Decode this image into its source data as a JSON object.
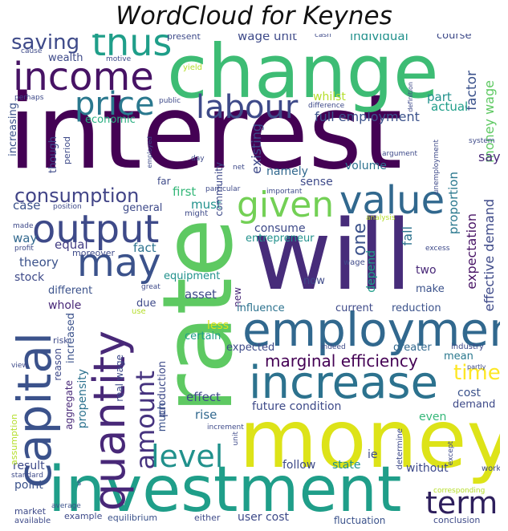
{
  "title": "WordCloud for Keynes",
  "words": [
    {
      "text": "interest",
      "color": "#440154",
      "vertical": false
    },
    {
      "text": "will",
      "color": "#472c7a",
      "vertical": false
    },
    {
      "text": "rate",
      "color": "#5ec962",
      "vertical": true
    },
    {
      "text": "money",
      "color": "#dde318",
      "vertical": false
    },
    {
      "text": "change",
      "color": "#3dbc74",
      "vertical": false
    },
    {
      "text": "investment",
      "color": "#1f9e89",
      "vertical": false
    },
    {
      "text": "employment",
      "color": "#31688e",
      "vertical": false
    },
    {
      "text": "capital",
      "color": "#3b528b",
      "vertical": true
    },
    {
      "text": "increase",
      "color": "#2c728e",
      "vertical": false
    },
    {
      "text": "quantity",
      "color": "#482878",
      "vertical": true
    },
    {
      "text": "income",
      "color": "#471365",
      "vertical": false
    },
    {
      "text": "output",
      "color": "#3e4a89",
      "vertical": false
    },
    {
      "text": "may",
      "color": "#3b528b",
      "vertical": false
    },
    {
      "text": "value",
      "color": "#31688e",
      "vertical": false
    },
    {
      "text": "given",
      "color": "#73d055",
      "vertical": false
    },
    {
      "text": "thus",
      "color": "#1f9e89",
      "vertical": false
    },
    {
      "text": "labour",
      "color": "#3e4a89",
      "vertical": false
    },
    {
      "text": "price",
      "color": "#2a788e",
      "vertical": false
    },
    {
      "text": "consumption",
      "color": "#414487",
      "vertical": false
    },
    {
      "text": "amount",
      "color": "#46337f",
      "vertical": true
    },
    {
      "text": "level",
      "color": "#21918c",
      "vertical": false
    },
    {
      "text": "term",
      "color": "#2d1e5c",
      "vertical": false
    },
    {
      "text": "time",
      "color": "#fde725",
      "vertical": false
    },
    {
      "text": "saving",
      "color": "#3e4a89",
      "vertical": false
    },
    {
      "text": "marginal efficiency",
      "color": "#440154",
      "vertical": false
    },
    {
      "text": "wage unit",
      "color": "#3e4a89",
      "vertical": false
    },
    {
      "text": "individual",
      "color": "#21918c",
      "vertical": false
    },
    {
      "text": "full employment",
      "color": "#3b528b",
      "vertical": false
    },
    {
      "text": "money wage",
      "color": "#5ec962",
      "vertical": true
    },
    {
      "text": "factor",
      "color": "#3b528b",
      "vertical": true
    },
    {
      "text": "part",
      "color": "#21918c",
      "vertical": false
    },
    {
      "text": "actual",
      "color": "#1f9e89",
      "vertical": false
    },
    {
      "text": "say",
      "color": "#482878",
      "vertical": false
    },
    {
      "text": "economic",
      "color": "#28ae80",
      "vertical": false
    },
    {
      "text": "existing",
      "color": "#3e4a89",
      "vertical": true
    },
    {
      "text": "namely",
      "color": "#31688e",
      "vertical": false
    },
    {
      "text": "volume",
      "color": "#2c728e",
      "vertical": false
    },
    {
      "text": "sense",
      "color": "#3e4a89",
      "vertical": false
    },
    {
      "text": "proportion",
      "color": "#2a788e",
      "vertical": true
    },
    {
      "text": "first",
      "color": "#35b779",
      "vertical": false
    },
    {
      "text": "must",
      "color": "#21918c",
      "vertical": false
    },
    {
      "text": "case",
      "color": "#3b528b",
      "vertical": false
    },
    {
      "text": "general",
      "color": "#3e4a89",
      "vertical": false
    },
    {
      "text": "way",
      "color": "#31688e",
      "vertical": false
    },
    {
      "text": "equal",
      "color": "#433d84",
      "vertical": false
    },
    {
      "text": "fact",
      "color": "#2c728e",
      "vertical": false
    },
    {
      "text": "theory",
      "color": "#3b528b",
      "vertical": false
    },
    {
      "text": "stock",
      "color": "#3e4a89",
      "vertical": false
    },
    {
      "text": "consume",
      "color": "#3e4a89",
      "vertical": false
    },
    {
      "text": "entrepreneur",
      "color": "#21918c",
      "vertical": false
    },
    {
      "text": "one",
      "color": "#3b528b",
      "vertical": true
    },
    {
      "text": "fall",
      "color": "#2c728e",
      "vertical": true
    },
    {
      "text": "depend",
      "color": "#1f9e89",
      "vertical": true
    },
    {
      "text": "two",
      "color": "#482878",
      "vertical": false
    },
    {
      "text": "expectation",
      "color": "#471365",
      "vertical": true
    },
    {
      "text": "effective demand",
      "color": "#3e4a89",
      "vertical": true
    },
    {
      "text": "equipment",
      "color": "#21918c",
      "vertical": false
    },
    {
      "text": "now",
      "color": "#3e4a89",
      "vertical": false
    },
    {
      "text": "make",
      "color": "#3b528b",
      "vertical": false
    },
    {
      "text": "different",
      "color": "#3b528b",
      "vertical": false
    },
    {
      "text": "whole",
      "color": "#482878",
      "vertical": false
    },
    {
      "text": "due",
      "color": "#3e4a89",
      "vertical": false
    },
    {
      "text": "asset",
      "color": "#3e4a89",
      "vertical": false
    },
    {
      "text": "new",
      "color": "#482878",
      "vertical": true
    },
    {
      "text": "influence",
      "color": "#2c728e",
      "vertical": false
    },
    {
      "text": "current",
      "color": "#3e4a89",
      "vertical": false
    },
    {
      "text": "reduction",
      "color": "#3b528b",
      "vertical": false
    },
    {
      "text": "increased",
      "color": "#3b528b",
      "vertical": true
    },
    {
      "text": "certain",
      "color": "#1f9e89",
      "vertical": false
    },
    {
      "text": "less",
      "color": "#dde318",
      "vertical": false
    },
    {
      "text": "expected",
      "color": "#3e4a89",
      "vertical": false
    },
    {
      "text": "greater",
      "color": "#31688e",
      "vertical": false
    },
    {
      "text": "mean",
      "color": "#2a788e",
      "vertical": false
    },
    {
      "text": "cost",
      "color": "#3b528b",
      "vertical": false
    },
    {
      "text": "demand",
      "color": "#3e4a89",
      "vertical": false
    },
    {
      "text": "even",
      "color": "#35b779",
      "vertical": false
    },
    {
      "text": "effect",
      "color": "#3e4a89",
      "vertical": false
    },
    {
      "text": "future condition",
      "color": "#3e4a89",
      "vertical": false
    },
    {
      "text": "rise",
      "color": "#31688e",
      "vertical": false
    },
    {
      "text": "production",
      "color": "#3e4a89",
      "vertical": true
    },
    {
      "text": "much",
      "color": "#3b528b",
      "vertical": true
    },
    {
      "text": "real wage",
      "color": "#3e4a89",
      "vertical": true
    },
    {
      "text": "propensity",
      "color": "#2c728e",
      "vertical": true
    },
    {
      "text": "aggregate",
      "color": "#482878",
      "vertical": true
    },
    {
      "text": "result",
      "color": "#3e4a89",
      "vertical": false
    },
    {
      "text": "point",
      "color": "#3b528b",
      "vertical": false
    },
    {
      "text": "follow",
      "color": "#3e4a89",
      "vertical": false
    },
    {
      "text": "state",
      "color": "#21918c",
      "vertical": false
    },
    {
      "text": "without",
      "color": "#3e4a89",
      "vertical": false
    },
    {
      "text": "ie",
      "color": "#3e4a89",
      "vertical": false
    },
    {
      "text": "user cost",
      "color": "#3e4a89",
      "vertical": false
    },
    {
      "text": "fluctuation",
      "color": "#3b528b",
      "vertical": false
    },
    {
      "text": "conclusion",
      "color": "#3e4a89",
      "vertical": false
    },
    {
      "text": "either",
      "color": "#3e4a89",
      "vertical": false
    },
    {
      "text": "equilibrium",
      "color": "#3b528b",
      "vertical": false
    },
    {
      "text": "example",
      "color": "#3e4a89",
      "vertical": false
    },
    {
      "text": "market",
      "color": "#3e4a89",
      "vertical": false
    },
    {
      "text": "available",
      "color": "#3e4a89",
      "vertical": false
    },
    {
      "text": "average",
      "color": "#3b528b",
      "vertical": false
    },
    {
      "text": "standard",
      "color": "#3e4a89",
      "vertical": false
    },
    {
      "text": "assumption",
      "color": "#b5de2b",
      "vertical": true
    },
    {
      "text": "view",
      "color": "#3e4a89",
      "vertical": false
    },
    {
      "text": "risk",
      "color": "#3e4a89",
      "vertical": false
    },
    {
      "text": "reason",
      "color": "#3e4a89",
      "vertical": true
    },
    {
      "text": "wealth",
      "color": "#3e4a89",
      "vertical": false
    },
    {
      "text": "motive",
      "color": "#3e4a89",
      "vertical": false
    },
    {
      "text": "cause",
      "color": "#3e4a89",
      "vertical": false
    },
    {
      "text": "perhaps",
      "color": "#3e4a89",
      "vertical": false
    },
    {
      "text": "increasing",
      "color": "#3b528b",
      "vertical": true
    },
    {
      "text": "though",
      "color": "#3e4a89",
      "vertical": true
    },
    {
      "text": "period",
      "color": "#3e4a89",
      "vertical": true
    },
    {
      "text": "present",
      "color": "#3e4a89",
      "vertical": false
    },
    {
      "text": "cash",
      "color": "#3e4a89",
      "vertical": false
    },
    {
      "text": "course",
      "color": "#3e4a89",
      "vertical": false
    },
    {
      "text": "whilst",
      "color": "#b5de2b",
      "vertical": false
    },
    {
      "text": "difference",
      "color": "#3e4a89",
      "vertical": false
    },
    {
      "text": "definition",
      "color": "#3e4a89",
      "vertical": true
    },
    {
      "text": "yield",
      "color": "#b5de2b",
      "vertical": false
    },
    {
      "text": "public",
      "color": "#3e4a89",
      "vertical": false
    },
    {
      "text": "employed",
      "color": "#3e4a89",
      "vertical": true
    },
    {
      "text": "day",
      "color": "#3e4a89",
      "vertical": false
    },
    {
      "text": "far",
      "color": "#3e4a89",
      "vertical": false
    },
    {
      "text": "community",
      "color": "#3e4a89",
      "vertical": true
    },
    {
      "text": "net",
      "color": "#3e4a89",
      "vertical": false
    },
    {
      "text": "argument",
      "color": "#3e4a89",
      "vertical": false
    },
    {
      "text": "unemployment",
      "color": "#3e4a89",
      "vertical": true
    },
    {
      "text": "system",
      "color": "#3e4a89",
      "vertical": false
    },
    {
      "text": "particular",
      "color": "#3e4a89",
      "vertical": false
    },
    {
      "text": "important",
      "color": "#3e4a89",
      "vertical": false
    },
    {
      "text": "might",
      "color": "#3e4a89",
      "vertical": false
    },
    {
      "text": "position",
      "color": "#3e4a89",
      "vertical": false
    },
    {
      "text": "made",
      "color": "#3e4a89",
      "vertical": false
    },
    {
      "text": "profit",
      "color": "#3e4a89",
      "vertical": false
    },
    {
      "text": "moreover",
      "color": "#3e4a89",
      "vertical": false
    },
    {
      "text": "analysis",
      "color": "#b5de2b",
      "vertical": false
    },
    {
      "text": "excess",
      "color": "#3e4a89",
      "vertical": false
    },
    {
      "text": "wage",
      "color": "#3e4a89",
      "vertical": false
    },
    {
      "text": "great",
      "color": "#3e4a89",
      "vertical": false
    },
    {
      "text": "use",
      "color": "#b5de2b",
      "vertical": false
    },
    {
      "text": "indeed",
      "color": "#3e4a89",
      "vertical": false
    },
    {
      "text": "industry",
      "color": "#3e4a89",
      "vertical": false
    },
    {
      "text": "partly",
      "color": "#3e4a89",
      "vertical": false
    },
    {
      "text": "s",
      "color": "#3e4a89",
      "vertical": false
    },
    {
      "text": "increment",
      "color": "#3e4a89",
      "vertical": false
    },
    {
      "text": "unit",
      "color": "#3e4a89",
      "vertical": true
    },
    {
      "text": "determine",
      "color": "#3e4a89",
      "vertical": true
    },
    {
      "text": "except",
      "color": "#3e4a89",
      "vertical": true
    },
    {
      "text": "work",
      "color": "#3e4a89",
      "vertical": false
    },
    {
      "text": "corresponding",
      "color": "#b5de2b",
      "vertical": false
    }
  ]
}
